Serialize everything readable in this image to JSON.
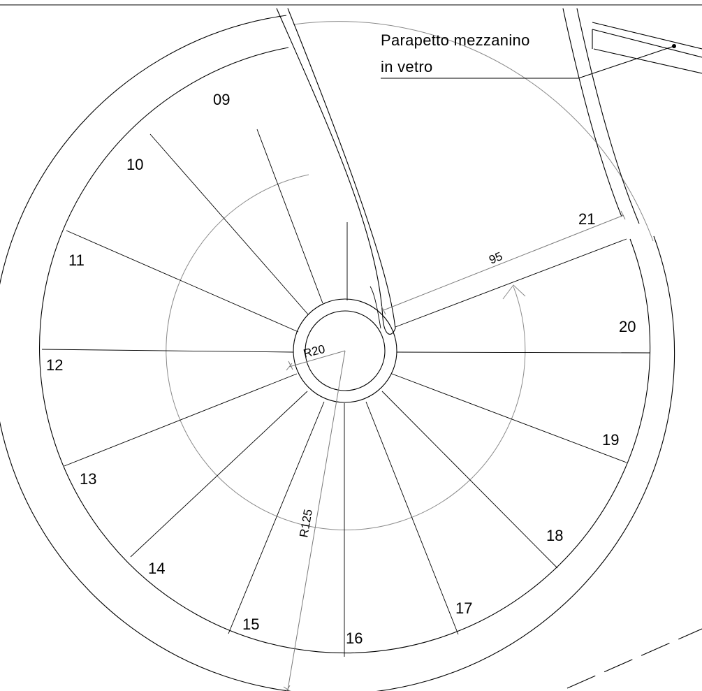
{
  "drawing": {
    "note": {
      "line1": "Parapetto mezzanino",
      "line2": "in vetro"
    },
    "dimensions": {
      "radius_inner": "R20",
      "radius_outer": "R125",
      "width": "95"
    },
    "step_numbers": [
      "09",
      "10",
      "11",
      "12",
      "13",
      "14",
      "15",
      "16",
      "17",
      "18",
      "19",
      "20",
      "21"
    ]
  }
}
